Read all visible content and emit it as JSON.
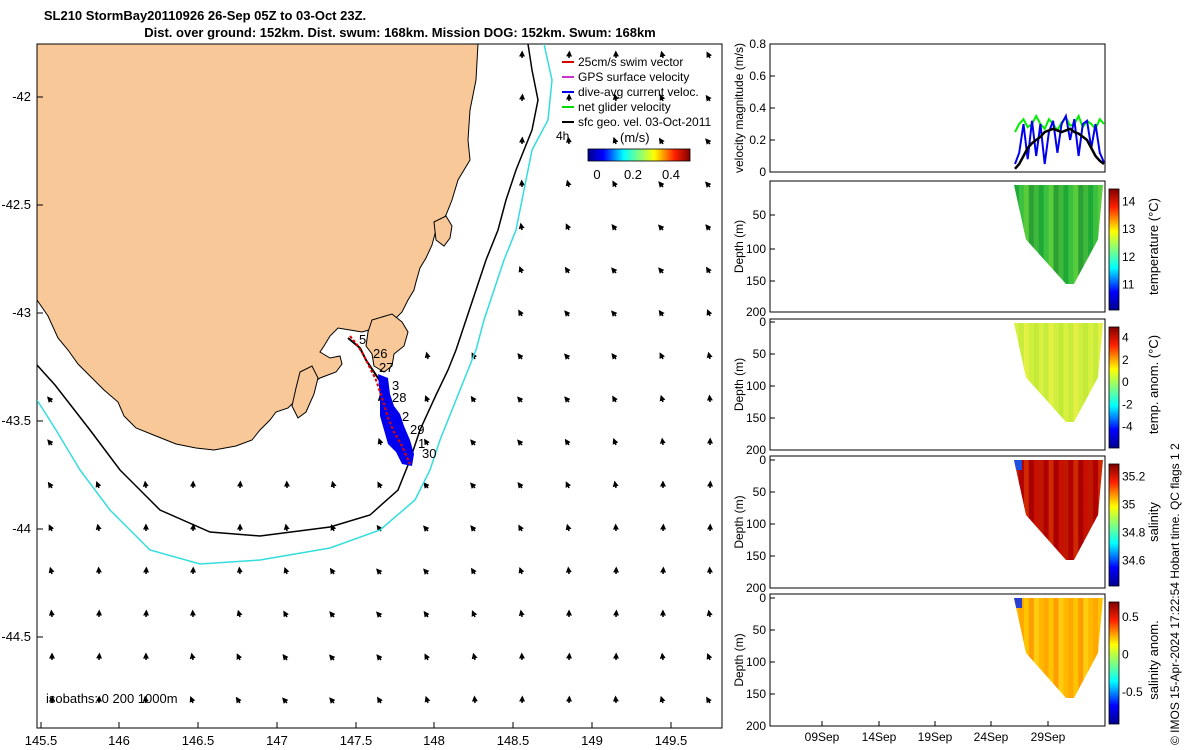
{
  "title_line1": "SL210 StormBay20110926 26-Sep 05Z to 03-Oct 23Z.",
  "title_line2": "Dist. over ground: 152km. Dist. swum: 168km. Mission DOG: 152km. Swum: 168km",
  "stamp": "© IMOS 15-Apr-2024 17:22:54 Hobart time. QC flags 1  2",
  "map": {
    "lon_ticks": [
      "145.5",
      "146",
      "146.5",
      "147",
      "147.5",
      "148",
      "148.5",
      "149",
      "149.5"
    ],
    "lat_ticks": [
      "-42",
      "-42.5",
      "-43",
      "-43.5",
      "-44",
      "-44.5"
    ],
    "isobaths_label": "isobaths: 0   200  1000m",
    "legend": [
      "25cm/s swim vector",
      "GPS surface velocity",
      "dive-avg current veloc.",
      "net glider velocity",
      "sfc geo. vel. 03-Oct-2011"
    ],
    "legend_colors": [
      "#dd0000",
      "#cc33cc",
      "#0000ee",
      "#00dd00",
      "#000000"
    ],
    "colorbar_label": "(m/s)",
    "colorbar_ticks": [
      "0",
      "0.2",
      "0.4"
    ],
    "scale_label": "4h",
    "day_labels": [
      "5",
      "26",
      "27",
      "3",
      "28",
      "2",
      "29",
      "1",
      "30"
    ],
    "land_color": "#f8c898",
    "isobath_200_color": "#000000",
    "isobath_1000_color": "#33dddd"
  },
  "chart_data": [
    {
      "type": "line",
      "title": "",
      "ylabel": "velocity magnitude (m/s)",
      "ylim": [
        0,
        0.8
      ],
      "yticks": [
        "0",
        "0.2",
        "0.4",
        "0.6",
        "0.8"
      ],
      "series": [
        {
          "name": "net glider velocity",
          "color": "#00ee00",
          "values": [
            0.25,
            0.3,
            0.33,
            0.28,
            0.3,
            0.35,
            0.3,
            0.27,
            0.33,
            0.3,
            0.26,
            0.31,
            0.34,
            0.29,
            0.3,
            0.35,
            0.28,
            0.32,
            0.3,
            0.27,
            0.33,
            0.3
          ]
        },
        {
          "name": "dive-avg current veloc.",
          "color": "#0000ee",
          "values": [
            0.05,
            0.12,
            0.3,
            0.08,
            0.32,
            0.1,
            0.3,
            0.05,
            0.25,
            0.32,
            0.12,
            0.3,
            0.35,
            0.2,
            0.33,
            0.1,
            0.3,
            0.32,
            0.15,
            0.3,
            0.12,
            0.06
          ]
        },
        {
          "name": "sfc geo. vel.",
          "color": "#000000",
          "values": [
            0.02,
            0.05,
            0.1,
            0.15,
            0.18,
            0.2,
            0.22,
            0.25,
            0.26,
            0.27,
            0.26,
            0.25,
            0.26,
            0.27,
            0.25,
            0.24,
            0.22,
            0.2,
            0.15,
            0.1,
            0.07,
            0.05
          ]
        }
      ]
    },
    {
      "type": "heatmap",
      "ylabel": "Depth (m)",
      "yticks": [
        "50",
        "100",
        "150",
        "200"
      ],
      "ylim": [
        0,
        200
      ],
      "cbar_label": "temperature (°C)",
      "cbar_ticks": [
        "14",
        "13",
        "12",
        "11"
      ],
      "cbar_range": [
        10.3,
        14.8
      ]
    },
    {
      "type": "heatmap",
      "ylabel": "Depth (m)",
      "yticks": [
        "0",
        "50",
        "100",
        "150",
        "200"
      ],
      "ylim": [
        0,
        200
      ],
      "cbar_label": "temp. anom. (°C)",
      "cbar_ticks": [
        "4",
        "2",
        "0",
        "-2",
        "-4"
      ],
      "cbar_range": [
        -4,
        4
      ]
    },
    {
      "type": "heatmap",
      "ylabel": "Depth (m)",
      "yticks": [
        "0",
        "50",
        "100",
        "150",
        "200"
      ],
      "ylim": [
        0,
        200
      ],
      "cbar_label": "salinity",
      "cbar_ticks": [
        "35.2",
        "35",
        "34.8",
        "34.6"
      ],
      "cbar_range": [
        34.5,
        35.3
      ]
    },
    {
      "type": "heatmap",
      "ylabel": "Depth (m)",
      "yticks": [
        "0",
        "50",
        "100",
        "150",
        "200"
      ],
      "ylim": [
        0,
        200
      ],
      "cbar_label": "salinity anom.",
      "cbar_ticks": [
        "0.5",
        "0",
        "-0.5"
      ],
      "cbar_range": [
        -0.5,
        0.5
      ],
      "xticks": [
        "09Sep",
        "14Sep",
        "19Sep",
        "24Sep",
        "29Sep"
      ]
    }
  ]
}
